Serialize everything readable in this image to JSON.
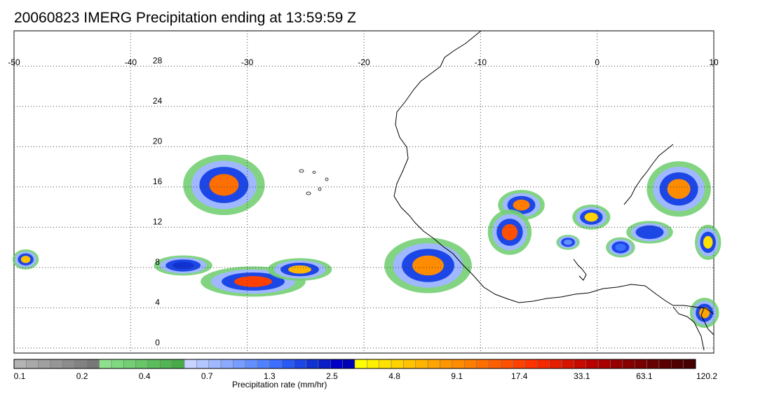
{
  "title": "20060823 IMERG Precipitation ending at 13:59:59 Z",
  "map": {
    "lon_range": [
      -50,
      10
    ],
    "lat_range": [
      -0.5,
      31.5
    ],
    "lon_ticks": [
      -50,
      -40,
      -30,
      -20,
      -10,
      0,
      10
    ],
    "lon_tick_labels": [
      "-50",
      "-40",
      "-30",
      "-20",
      "-10",
      "0",
      "10"
    ],
    "lat_ticks": [
      0,
      4,
      8,
      12,
      16,
      20,
      24,
      28
    ],
    "lat_tick_labels": [
      "0",
      "4",
      "8",
      "12",
      "16",
      "20",
      "24",
      "28"
    ],
    "grid": true,
    "coastline": "West Africa"
  },
  "colorbar": {
    "label": "Precipitation rate (mm/hr)",
    "tick_labels": [
      "0.1",
      "0.2",
      "0.4",
      "0.7",
      "1.3",
      "2.5",
      "4.8",
      "9.1",
      "17.4",
      "33.1",
      "63.1",
      "120.2"
    ],
    "colors": [
      "#b4b4b4",
      "#aaaaaa",
      "#a0a0a0",
      "#969696",
      "#8c8c8c",
      "#828282",
      "#787878",
      "#8ee08e",
      "#80d880",
      "#74cf74",
      "#68c668",
      "#5cbd5c",
      "#52b452",
      "#48ab48",
      "#c8d4ff",
      "#b4c6ff",
      "#a0b8ff",
      "#8caaff",
      "#789cff",
      "#6490ff",
      "#5082ff",
      "#3c6eff",
      "#2a5af5",
      "#1c46e6",
      "#1032d2",
      "#0a1ec8",
      "#0000c8",
      "#0000b4",
      "#ffff00",
      "#fff000",
      "#ffe100",
      "#ffd200",
      "#ffc300",
      "#ffb400",
      "#ffa500",
      "#ff9600",
      "#ff8c00",
      "#ff7d00",
      "#ff6e00",
      "#ff5f00",
      "#ff5000",
      "#ff4100",
      "#ff3200",
      "#f52800",
      "#e61e00",
      "#d71400",
      "#c80a00",
      "#b90000",
      "#aa0000",
      "#960000",
      "#870000",
      "#780000",
      "#690000",
      "#5a0000",
      "#500000",
      "#460000"
    ]
  },
  "precip_areas": [
    {
      "lon": -32.0,
      "lat": 16.2,
      "rlon": 2.8,
      "rlat": 2.4,
      "peak": "#ff6e00"
    },
    {
      "lon": -29.5,
      "lat": 6.6,
      "rlon": 3.6,
      "rlat": 1.2,
      "peak": "#ff4100"
    },
    {
      "lon": -25.5,
      "lat": 7.8,
      "rlon": 2.2,
      "rlat": 0.9,
      "peak": "#ffb400"
    },
    {
      "lon": -35.5,
      "lat": 8.2,
      "rlon": 2.0,
      "rlat": 0.8,
      "peak": "#1032d2"
    },
    {
      "lon": -49.0,
      "lat": 8.8,
      "rlon": 0.9,
      "rlat": 0.8,
      "peak": "#ffc300"
    },
    {
      "lon": -14.5,
      "lat": 8.2,
      "rlon": 3.0,
      "rlat": 2.2,
      "peak": "#ff8c00"
    },
    {
      "lon": -6.5,
      "lat": 14.2,
      "rlon": 1.6,
      "rlat": 1.2,
      "peak": "#ff7d00"
    },
    {
      "lon": -7.5,
      "lat": 11.5,
      "rlon": 1.5,
      "rlat": 1.8,
      "peak": "#ff5000"
    },
    {
      "lon": -0.5,
      "lat": 13.0,
      "rlon": 1.3,
      "rlat": 1.0,
      "peak": "#ffd200"
    },
    {
      "lon": 7.0,
      "lat": 15.8,
      "rlon": 2.2,
      "rlat": 2.2,
      "peak": "#ff8c00"
    },
    {
      "lon": 4.5,
      "lat": 11.5,
      "rlon": 1.6,
      "rlat": 0.9,
      "peak": "#1c46e6"
    },
    {
      "lon": 9.5,
      "lat": 10.5,
      "rlon": 0.9,
      "rlat": 1.4,
      "peak": "#ffe100"
    },
    {
      "lon": 9.2,
      "lat": 3.5,
      "rlon": 1.0,
      "rlat": 1.2,
      "peak": "#ffa500"
    },
    {
      "lon": 2.0,
      "lat": 10.0,
      "rlon": 1.0,
      "rlat": 0.8,
      "peak": "#3c6eff"
    },
    {
      "lon": -2.5,
      "lat": 10.5,
      "rlon": 0.8,
      "rlat": 0.6,
      "peak": "#6490ff"
    }
  ]
}
